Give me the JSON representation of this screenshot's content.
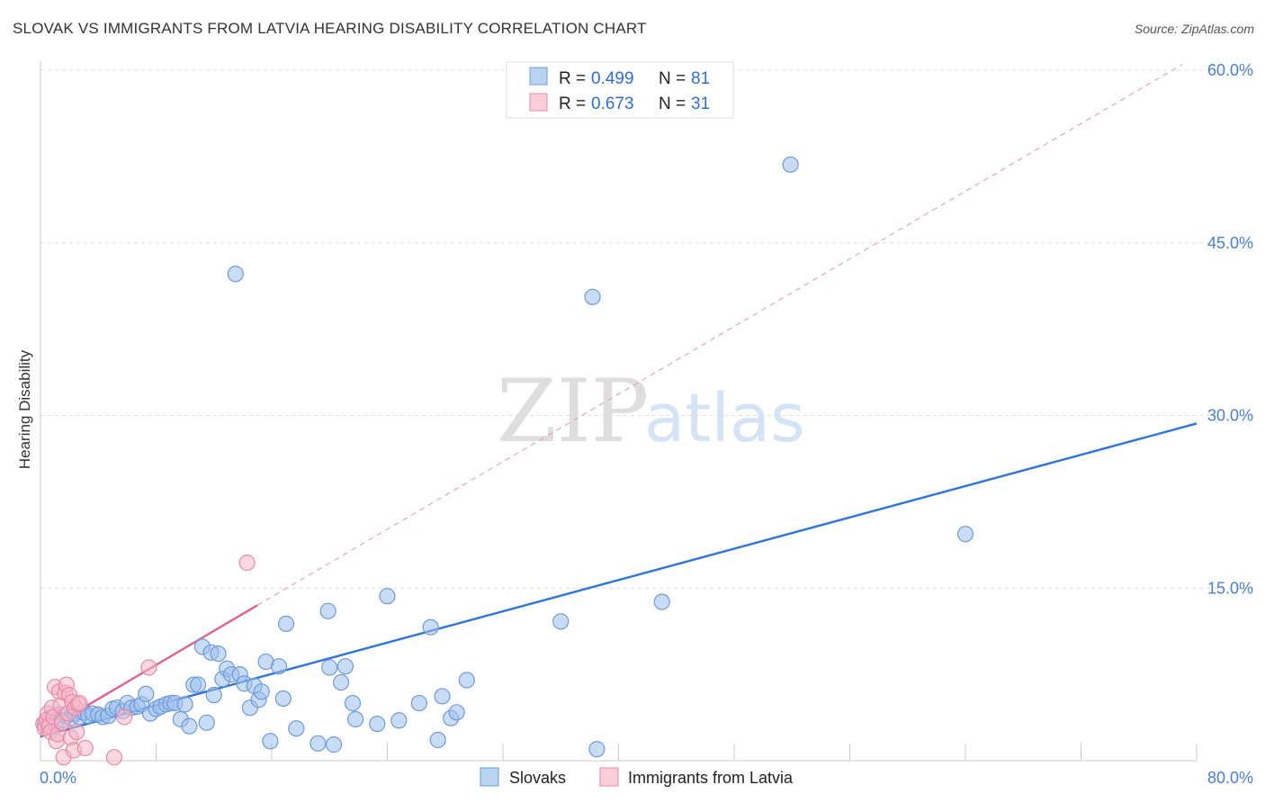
{
  "title": "SLOVAK VS IMMIGRANTS FROM LATVIA HEARING DISABILITY CORRELATION CHART",
  "source": "Source: ZipAtlas.com",
  "watermark": {
    "zip": "ZIP",
    "atlas": "atlas"
  },
  "legend": {
    "rows": [
      {
        "r_label": "R =",
        "r_value": "0.499",
        "n_label": "N =",
        "n_value": "81",
        "color": "#9dc0ee",
        "edge": "#6f9bd8"
      },
      {
        "r_label": "R =",
        "r_value": "0.673",
        "n_label": "N =",
        "n_value": "31",
        "color": "#f6b8c9",
        "edge": "#e88aa6"
      }
    ]
  },
  "chart_data": {
    "type": "scatter",
    "title": "SLOVAK VS IMMIGRANTS FROM LATVIA HEARING DISABILITY CORRELATION CHART",
    "xlabel": "",
    "ylabel": "Hearing Disability",
    "xlim": [
      0,
      80
    ],
    "ylim": [
      0,
      60
    ],
    "x_tick_labels": [
      "0.0%",
      "80.0%"
    ],
    "y_ticks": [
      15,
      30,
      45,
      60
    ],
    "y_tick_labels": [
      "15.0%",
      "30.0%",
      "45.0%",
      "60.0%"
    ],
    "grid": true,
    "legend_position": "top-center",
    "series": [
      {
        "name": "Slovaks",
        "color": "#9dc0ee",
        "edge": "#6f9bd8",
        "line_color": "#2f74d6",
        "trend": [
          [
            0,
            2.1
          ],
          [
            80,
            29.3
          ]
        ],
        "points": [
          [
            0.3,
            3.2
          ],
          [
            0.5,
            3.6
          ],
          [
            0.7,
            3.0
          ],
          [
            0.9,
            3.8
          ],
          [
            1.1,
            3.4
          ],
          [
            1.3,
            4.0
          ],
          [
            1.5,
            3.5
          ],
          [
            1.8,
            3.9
          ],
          [
            2.1,
            3.7
          ],
          [
            2.4,
            4.1
          ],
          [
            2.7,
            3.8
          ],
          [
            3.0,
            4.2
          ],
          [
            3.3,
            3.9
          ],
          [
            3.6,
            4.1
          ],
          [
            4.0,
            4.0
          ],
          [
            4.3,
            3.8
          ],
          [
            4.7,
            3.9
          ],
          [
            5.0,
            4.5
          ],
          [
            5.3,
            4.6
          ],
          [
            5.7,
            4.3
          ],
          [
            6.0,
            5.0
          ],
          [
            6.3,
            4.6
          ],
          [
            6.7,
            4.7
          ],
          [
            7.0,
            4.9
          ],
          [
            7.3,
            5.8
          ],
          [
            7.6,
            4.1
          ],
          [
            8.0,
            4.5
          ],
          [
            8.3,
            4.7
          ],
          [
            8.7,
            4.9
          ],
          [
            9.0,
            5.0
          ],
          [
            9.3,
            5.0
          ],
          [
            9.7,
            3.6
          ],
          [
            10.0,
            4.9
          ],
          [
            10.3,
            3.0
          ],
          [
            10.6,
            6.6
          ],
          [
            10.9,
            6.6
          ],
          [
            11.2,
            9.9
          ],
          [
            11.5,
            3.3
          ],
          [
            11.8,
            9.4
          ],
          [
            12.0,
            5.7
          ],
          [
            12.3,
            9.3
          ],
          [
            12.6,
            7.1
          ],
          [
            12.9,
            8.0
          ],
          [
            13.2,
            7.5
          ],
          [
            13.5,
            42.3
          ],
          [
            13.8,
            7.5
          ],
          [
            14.1,
            6.7
          ],
          [
            14.5,
            4.6
          ],
          [
            14.8,
            6.5
          ],
          [
            15.1,
            5.3
          ],
          [
            15.3,
            6.0
          ],
          [
            15.6,
            8.6
          ],
          [
            15.9,
            1.7
          ],
          [
            16.5,
            8.2
          ],
          [
            16.8,
            5.4
          ],
          [
            17.0,
            11.9
          ],
          [
            17.7,
            2.8
          ],
          [
            19.2,
            1.5
          ],
          [
            19.9,
            13.0
          ],
          [
            20.0,
            8.1
          ],
          [
            20.3,
            1.4
          ],
          [
            20.8,
            6.8
          ],
          [
            21.1,
            8.2
          ],
          [
            21.6,
            5.0
          ],
          [
            21.8,
            3.6
          ],
          [
            23.3,
            3.2
          ],
          [
            24.0,
            14.3
          ],
          [
            24.8,
            3.5
          ],
          [
            26.2,
            5.0
          ],
          [
            27.0,
            11.6
          ],
          [
            27.5,
            1.8
          ],
          [
            27.8,
            5.6
          ],
          [
            28.4,
            3.7
          ],
          [
            28.8,
            4.2
          ],
          [
            29.5,
            7.0
          ],
          [
            36.0,
            12.1
          ],
          [
            38.2,
            40.3
          ],
          [
            38.5,
            1.0
          ],
          [
            43.0,
            13.8
          ],
          [
            51.9,
            51.8
          ],
          [
            64.0,
            19.7
          ]
        ]
      },
      {
        "name": "Immigrants from Latvia",
        "color": "#f6b8c9",
        "edge": "#e88aa6",
        "line_color": "#e0628e",
        "trend": [
          [
            0,
            2.4
          ],
          [
            15,
            13.5
          ]
        ],
        "trend_extension": [
          [
            15,
            13.5
          ],
          [
            79,
            60.5
          ]
        ],
        "points": [
          [
            0.2,
            3.2
          ],
          [
            0.3,
            2.8
          ],
          [
            0.4,
            3.5
          ],
          [
            0.5,
            4.1
          ],
          [
            0.6,
            3.0
          ],
          [
            0.7,
            2.5
          ],
          [
            0.8,
            4.6
          ],
          [
            0.9,
            3.8
          ],
          [
            1.0,
            6.4
          ],
          [
            1.1,
            1.7
          ],
          [
            1.2,
            2.3
          ],
          [
            1.3,
            6.0
          ],
          [
            1.4,
            4.8
          ],
          [
            1.5,
            3.3
          ],
          [
            1.6,
            0.3
          ],
          [
            1.7,
            5.9
          ],
          [
            1.8,
            6.6
          ],
          [
            1.9,
            4.1
          ],
          [
            2.0,
            5.7
          ],
          [
            2.1,
            2.0
          ],
          [
            2.2,
            5.1
          ],
          [
            2.3,
            0.9
          ],
          [
            2.4,
            4.6
          ],
          [
            2.5,
            2.5
          ],
          [
            2.6,
            4.9
          ],
          [
            2.7,
            5.0
          ],
          [
            3.1,
            1.1
          ],
          [
            5.1,
            0.3
          ],
          [
            5.8,
            3.8
          ],
          [
            7.5,
            8.1
          ],
          [
            14.3,
            17.2
          ]
        ]
      }
    ]
  }
}
